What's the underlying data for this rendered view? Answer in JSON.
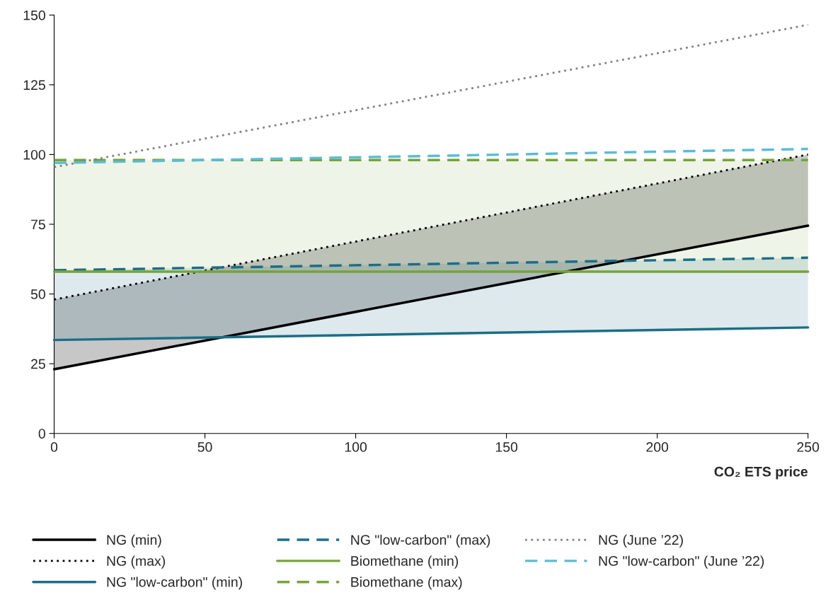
{
  "chart_data": {
    "type": "line",
    "xlabel": "CO₂ ETS price",
    "x": [
      0,
      250
    ],
    "xlim": [
      0,
      250
    ],
    "ylim": [
      0,
      150
    ],
    "xticks": [
      0,
      50,
      100,
      150,
      200,
      250
    ],
    "yticks": [
      0,
      25,
      50,
      75,
      100,
      125,
      150
    ],
    "grid": false,
    "legend": "bottom",
    "marker": "none",
    "series": [
      {
        "name": "NG (min)",
        "color": "#000000",
        "line_style": "solid",
        "values": [
          23,
          74.5
        ],
        "lower": [
          23,
          74.5
        ],
        "upper": [
          48,
          100
        ]
      },
      {
        "name": "NG (max)",
        "color": "#000000",
        "line_style": "dotted",
        "values": [
          48,
          100
        ]
      },
      {
        "name": "NG \"low-carbon\" (min)",
        "color": "#1b6e87",
        "line_style": "solid",
        "values": [
          33.5,
          38
        ],
        "lower": [
          33.5,
          38
        ],
        "upper": [
          58.5,
          63
        ]
      },
      {
        "name": "NG \"low-carbon\" (max)",
        "color": "#1b6e87",
        "line_style": "dashed",
        "values": [
          58.5,
          63
        ]
      },
      {
        "name": "Biomethane (min)",
        "color": "#77a33a",
        "line_style": "solid",
        "values": [
          58,
          58
        ],
        "lower": [
          58,
          58
        ],
        "upper": [
          98,
          98
        ]
      },
      {
        "name": "Biomethane (max)",
        "color": "#77a33a",
        "line_style": "dashed",
        "values": [
          98,
          98
        ]
      },
      {
        "name": "NG (June ’22)",
        "color": "#808080",
        "line_style": "dotted",
        "values": [
          95.5,
          146.5
        ]
      },
      {
        "name": "NG \"low-carbon\" (June ’22)",
        "color": "#5bbcd6",
        "line_style": "dashed",
        "values": [
          97,
          102
        ]
      }
    ]
  }
}
